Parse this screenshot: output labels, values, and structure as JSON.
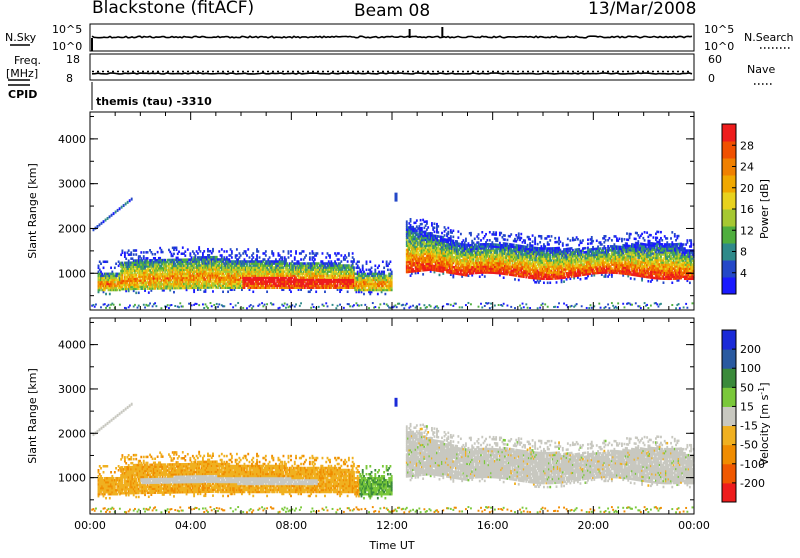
{
  "header": {
    "station": "Blackstone (fitACF)",
    "beam": "Beam 08",
    "date": "13/Mar/2008"
  },
  "strip_noise": {
    "left_label": "N.Sky",
    "right_label": "N.Search",
    "left_ticks": [
      "10^5",
      "10^0"
    ],
    "right_ticks": [
      "10^5",
      "10^0"
    ]
  },
  "strip_freq": {
    "left_label_1": "Freq.",
    "left_label_2": "[MHz]",
    "right_label": "Nave",
    "left_ticks": [
      "18",
      "8"
    ],
    "right_ticks": [
      "60",
      "0"
    ]
  },
  "cpid": {
    "label": "CPID",
    "text": "themis (tau) -3310"
  },
  "chart_data": [
    {
      "type": "heatmap",
      "name": "power",
      "ylabel": "Slant Range [km]",
      "xlim_hours": [
        0,
        24
      ],
      "ylim_km": [
        180,
        4600
      ],
      "y_ticks": [
        "1000",
        "2000",
        "3000",
        "4000"
      ],
      "colorbar": {
        "label": "Power [dB]",
        "ticks": [
          "4",
          "8",
          "12",
          "16",
          "20",
          "24",
          "28"
        ],
        "range": [
          0,
          32
        ],
        "colors": [
          "#1a1aff",
          "#2448c8",
          "#2f8a8a",
          "#4fae3e",
          "#a6c832",
          "#e8d21e",
          "#f0a800",
          "#f08000",
          "#f05000",
          "#ee1c1c"
        ]
      }
    },
    {
      "type": "heatmap",
      "name": "velocity",
      "ylabel": "Slant Range [km]",
      "xlabel": "Time UT",
      "xlim_hours": [
        0,
        24
      ],
      "ylim_km": [
        180,
        4600
      ],
      "x_ticks": [
        "00:00",
        "04:00",
        "08:00",
        "12:00",
        "16:00",
        "20:00",
        "00:00"
      ],
      "y_ticks": [
        "1000",
        "2000",
        "3000",
        "4000"
      ],
      "colorbar": {
        "label": "Velocity [m s^-1]",
        "ticks": [
          "200",
          "100",
          "50",
          "15",
          "-15",
          "-50",
          "-100",
          "-200"
        ],
        "colors": [
          "#1a2ad8",
          "#2a5aa0",
          "#3a8a3a",
          "#7ac83a",
          "#c8c8c0",
          "#f0b020",
          "#f08c00",
          "#f05800",
          "#ee1c1c"
        ]
      }
    }
  ]
}
